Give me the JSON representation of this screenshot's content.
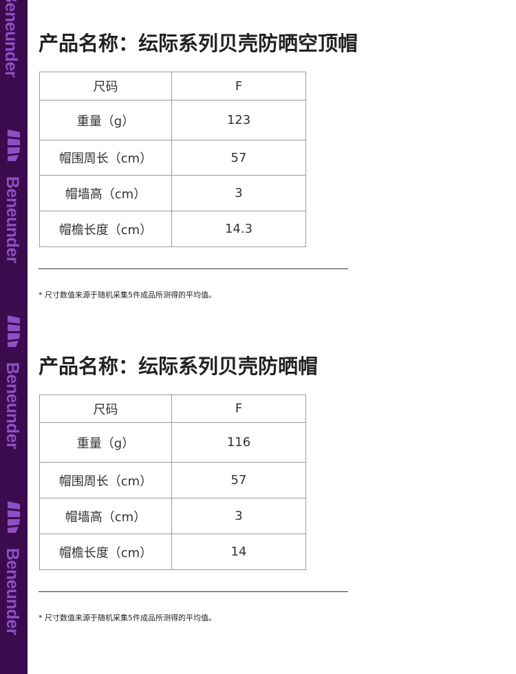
{
  "brand": {
    "name": "Beneunder",
    "colors": {
      "sidebar": "#3b0b4e",
      "logo": "#8f4fc4"
    }
  },
  "products": [
    {
      "title": "产品名称：纭际系列贝壳防晒空顶帽",
      "header": [
        "尺码",
        "F"
      ],
      "rows": [
        [
          "重量（g）",
          "123"
        ],
        [
          "帽围周长（cm）",
          "57"
        ],
        [
          "帽墙高（cm）",
          "3"
        ],
        [
          "帽檐长度（cm）",
          "14.3"
        ]
      ],
      "note": "* 尺寸数值来源于随机采集5件成品所测得的平均值。"
    },
    {
      "title": "产品名称：纭际系列贝壳防晒帽",
      "header": [
        "尺码",
        "F"
      ],
      "rows": [
        [
          "重量（g）",
          "116"
        ],
        [
          "帽围周长（cm）",
          "57"
        ],
        [
          "帽墙高（cm）",
          "3"
        ],
        [
          "帽檐长度（cm）",
          "14"
        ]
      ],
      "note": "* 尺寸数值来源于随机采集5件成品所测得的平均值。"
    }
  ]
}
